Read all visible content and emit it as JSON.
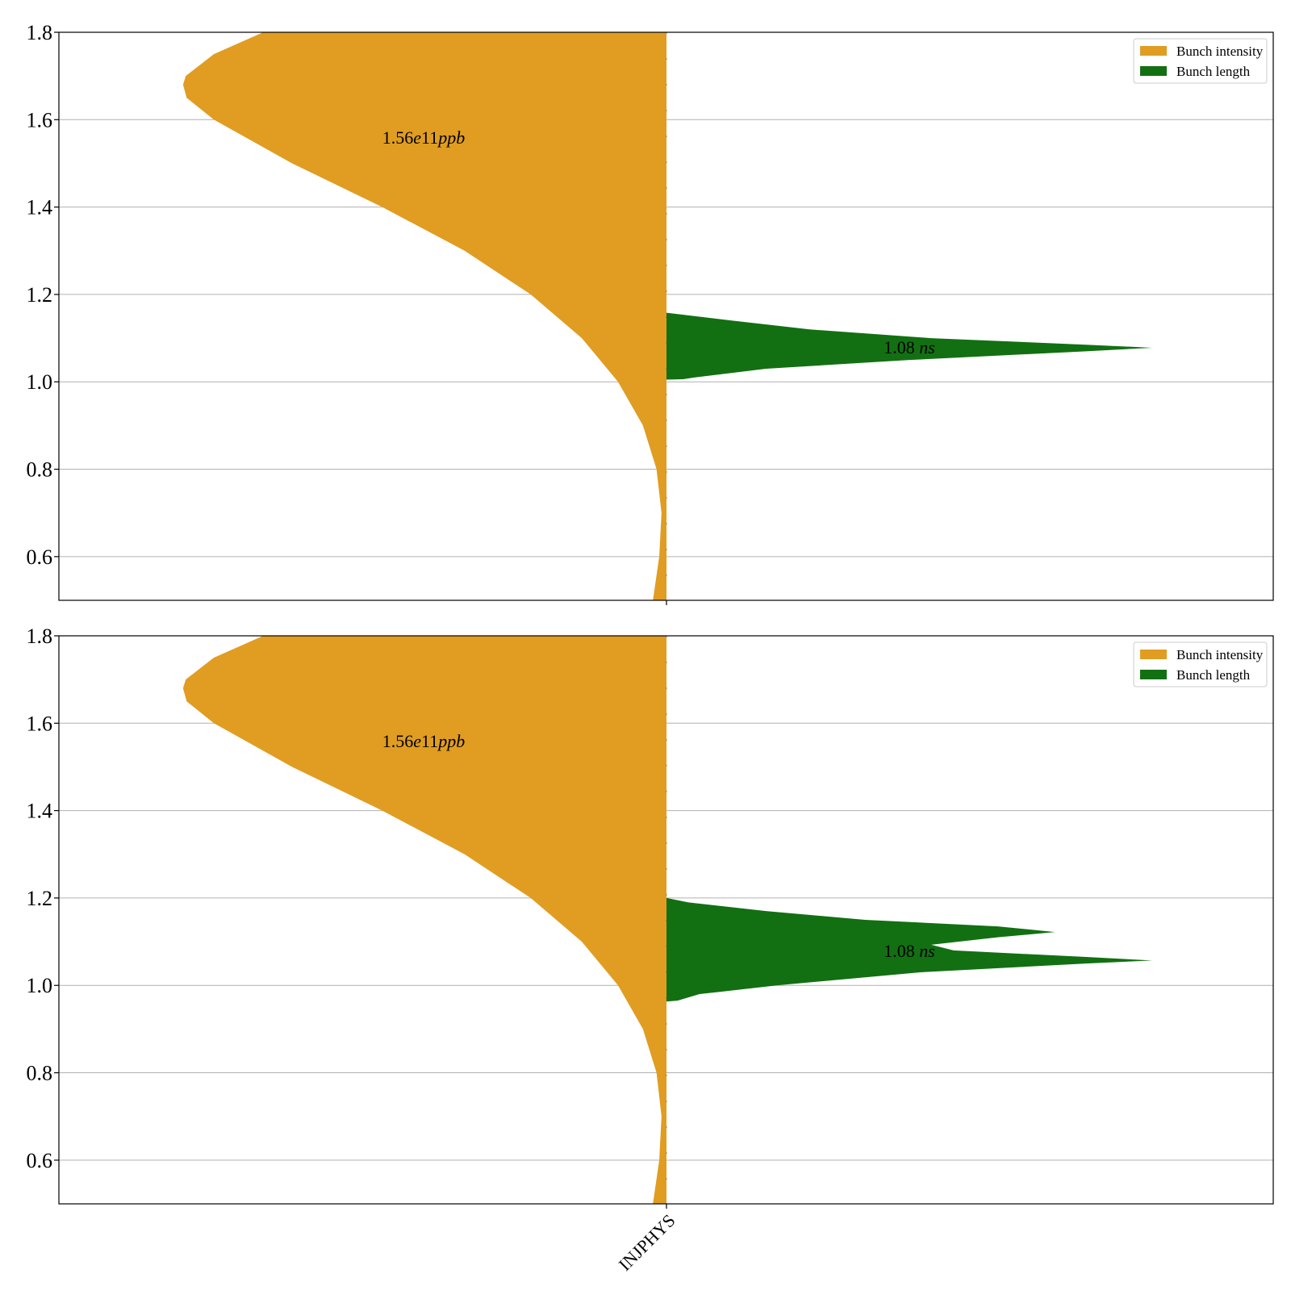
{
  "chart_data": [
    {
      "type": "violin",
      "categories": [
        "INJPHYS"
      ],
      "ylim": [
        0.5,
        1.8
      ],
      "yticks": [
        "0.6",
        "0.8",
        "1.0",
        "1.2",
        "1.4",
        "1.6",
        "1.8"
      ],
      "grid": "horizontal",
      "legend_position": "top-right",
      "xtick_labels_visible": false,
      "series": [
        {
          "name": "Bunch intensity",
          "side": "left",
          "color": "#e09d22",
          "profile": [
            [
              0.5,
              0.03
            ],
            [
              0.6,
              0.016
            ],
            [
              0.7,
              0.011
            ],
            [
              0.8,
              0.022
            ],
            [
              0.9,
              0.052
            ],
            [
              1.0,
              0.107
            ],
            [
              1.1,
              0.187
            ],
            [
              1.2,
              0.3
            ],
            [
              1.3,
              0.446
            ],
            [
              1.4,
              0.628
            ],
            [
              1.5,
              0.827
            ],
            [
              1.6,
              1.0
            ],
            [
              1.65,
              1.06
            ],
            [
              1.68,
              1.068
            ],
            [
              1.7,
              1.062
            ],
            [
              1.75,
              1.0
            ],
            [
              1.8,
              0.891
            ]
          ],
          "annotation": {
            "value": "1.56",
            "exp": "e11",
            "unit": "ppb",
            "y": 1.56
          }
        },
        {
          "name": "Bunch length",
          "side": "right",
          "color": "#127012",
          "profile": [
            [
              1.005,
              0.0
            ],
            [
              1.006,
              0.034
            ],
            [
              1.01,
              0.057
            ],
            [
              1.03,
              0.205
            ],
            [
              1.05,
              0.5
            ],
            [
              1.07,
              0.864
            ],
            [
              1.078,
              1.0
            ],
            [
              1.085,
              0.864
            ],
            [
              1.1,
              0.545
            ],
            [
              1.12,
              0.295
            ],
            [
              1.14,
              0.136
            ],
            [
              1.155,
              0.023
            ],
            [
              1.158,
              0.0
            ]
          ],
          "annotation": {
            "value": "1.08",
            "unit": "ns",
            "y": 1.08
          }
        }
      ]
    },
    {
      "type": "violin",
      "categories": [
        "INJPHYS"
      ],
      "ylim": [
        0.5,
        1.8
      ],
      "yticks": [
        "0.6",
        "0.8",
        "1.0",
        "1.2",
        "1.4",
        "1.6",
        "1.8"
      ],
      "grid": "horizontal",
      "legend_position": "top-right",
      "xtick_labels_visible": true,
      "series": [
        {
          "name": "Bunch intensity",
          "side": "left",
          "color": "#e09d22",
          "profile": [
            [
              0.5,
              0.03
            ],
            [
              0.6,
              0.016
            ],
            [
              0.7,
              0.011
            ],
            [
              0.8,
              0.022
            ],
            [
              0.9,
              0.052
            ],
            [
              1.0,
              0.107
            ],
            [
              1.1,
              0.187
            ],
            [
              1.2,
              0.3
            ],
            [
              1.3,
              0.446
            ],
            [
              1.4,
              0.628
            ],
            [
              1.5,
              0.827
            ],
            [
              1.6,
              1.0
            ],
            [
              1.65,
              1.06
            ],
            [
              1.68,
              1.068
            ],
            [
              1.7,
              1.062
            ],
            [
              1.75,
              1.0
            ],
            [
              1.8,
              0.891
            ]
          ],
          "annotation": {
            "value": "1.56",
            "exp": "e11",
            "unit": "ppb",
            "y": 1.56
          }
        },
        {
          "name": "Bunch length",
          "side": "right",
          "color": "#127012",
          "profile": [
            [
              0.963,
              0.0
            ],
            [
              0.965,
              0.023
            ],
            [
              0.98,
              0.068
            ],
            [
              1.0,
              0.227
            ],
            [
              1.03,
              0.523
            ],
            [
              1.05,
              0.864
            ],
            [
              1.057,
              1.0
            ],
            [
              1.065,
              0.864
            ],
            [
              1.08,
              0.591
            ],
            [
              1.093,
              0.545
            ],
            [
              1.11,
              0.682
            ],
            [
              1.122,
              0.8
            ],
            [
              1.135,
              0.682
            ],
            [
              1.15,
              0.409
            ],
            [
              1.17,
              0.205
            ],
            [
              1.19,
              0.045
            ],
            [
              1.2,
              0.0
            ]
          ],
          "annotation": {
            "value": "1.08",
            "unit": "ns",
            "y": 1.08
          }
        }
      ]
    }
  ],
  "colors": {
    "axes": "#000000",
    "grid": "#b0b0b0",
    "legend_border": "#cccccc"
  }
}
